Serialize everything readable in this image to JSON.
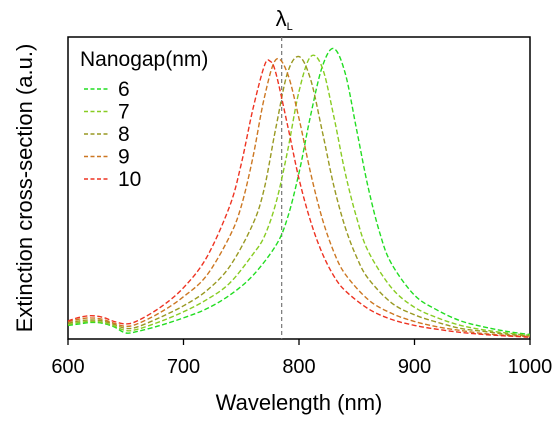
{
  "chart_data": {
    "type": "line",
    "title": "",
    "xlabel": "Wavelength (nm)",
    "ylabel": "Extinction cross-section (a.u.)",
    "xlim": [
      600,
      1000
    ],
    "ylim": [
      0,
      1
    ],
    "xticks": [
      600,
      700,
      800,
      900,
      1000
    ],
    "yticks": [],
    "grid": false,
    "legend": {
      "title": "Nanogap(nm)",
      "position": "top-left"
    },
    "reference_line": {
      "x": 785,
      "label_main": "λ",
      "label_sub": "L",
      "style": "dashed",
      "color": "#777777"
    },
    "series": [
      {
        "name": "6",
        "color": "#22dd22",
        "x": [
          600,
          610,
          620,
          630,
          640,
          650,
          660,
          680,
          700,
          720,
          740,
          760,
          780,
          790,
          800,
          810,
          820,
          830,
          840,
          850,
          860,
          870,
          880,
          900,
          920,
          940,
          960,
          980,
          1000
        ],
        "y": [
          0.045,
          0.05,
          0.055,
          0.052,
          0.04,
          0.02,
          0.025,
          0.045,
          0.07,
          0.1,
          0.145,
          0.21,
          0.31,
          0.4,
          0.55,
          0.74,
          0.9,
          0.962,
          0.88,
          0.69,
          0.5,
          0.35,
          0.25,
          0.145,
          0.095,
          0.06,
          0.04,
          0.025,
          0.015
        ]
      },
      {
        "name": "7",
        "color": "#88cc22",
        "x": [
          600,
          610,
          620,
          630,
          640,
          650,
          660,
          680,
          700,
          720,
          740,
          760,
          770,
          780,
          790,
          800,
          810,
          820,
          830,
          840,
          850,
          860,
          880,
          900,
          920,
          940,
          960,
          980,
          1000
        ],
        "y": [
          0.048,
          0.055,
          0.058,
          0.055,
          0.043,
          0.028,
          0.032,
          0.058,
          0.09,
          0.13,
          0.185,
          0.28,
          0.34,
          0.45,
          0.62,
          0.82,
          0.935,
          0.9,
          0.74,
          0.55,
          0.4,
          0.29,
          0.17,
          0.105,
          0.07,
          0.045,
          0.03,
          0.02,
          0.012
        ]
      },
      {
        "name": "8",
        "color": "#999922",
        "x": [
          600,
          610,
          620,
          630,
          640,
          650,
          660,
          680,
          700,
          720,
          740,
          760,
          770,
          780,
          790,
          800,
          810,
          820,
          830,
          840,
          850,
          860,
          880,
          900,
          920,
          940,
          960,
          980,
          1000
        ],
        "y": [
          0.052,
          0.06,
          0.063,
          0.06,
          0.048,
          0.035,
          0.04,
          0.072,
          0.11,
          0.16,
          0.24,
          0.38,
          0.5,
          0.7,
          0.88,
          0.935,
          0.86,
          0.69,
          0.51,
          0.37,
          0.27,
          0.2,
          0.12,
          0.08,
          0.055,
          0.035,
          0.025,
          0.016,
          0.01
        ]
      },
      {
        "name": "9",
        "color": "#cc7722",
        "x": [
          600,
          610,
          620,
          630,
          640,
          650,
          660,
          680,
          700,
          720,
          740,
          750,
          760,
          770,
          780,
          790,
          800,
          810,
          820,
          830,
          840,
          860,
          880,
          900,
          920,
          940,
          960,
          980,
          1000
        ],
        "y": [
          0.057,
          0.066,
          0.07,
          0.065,
          0.052,
          0.042,
          0.05,
          0.088,
          0.14,
          0.21,
          0.34,
          0.44,
          0.6,
          0.8,
          0.925,
          0.88,
          0.73,
          0.55,
          0.4,
          0.29,
          0.215,
          0.13,
          0.085,
          0.058,
          0.04,
          0.028,
          0.018,
          0.012,
          0.008
        ]
      },
      {
        "name": "10",
        "color": "#ee3322",
        "x": [
          600,
          610,
          620,
          630,
          640,
          650,
          660,
          680,
          700,
          720,
          740,
          750,
          760,
          770,
          775,
          780,
          790,
          800,
          810,
          820,
          830,
          840,
          860,
          880,
          900,
          920,
          940,
          960,
          980,
          1000
        ],
        "y": [
          0.06,
          0.072,
          0.077,
          0.072,
          0.058,
          0.05,
          0.06,
          0.105,
          0.17,
          0.27,
          0.44,
          0.58,
          0.76,
          0.905,
          0.92,
          0.88,
          0.71,
          0.53,
          0.39,
          0.285,
          0.21,
          0.16,
          0.1,
          0.065,
          0.045,
          0.032,
          0.022,
          0.015,
          0.01,
          0.006
        ]
      }
    ]
  }
}
